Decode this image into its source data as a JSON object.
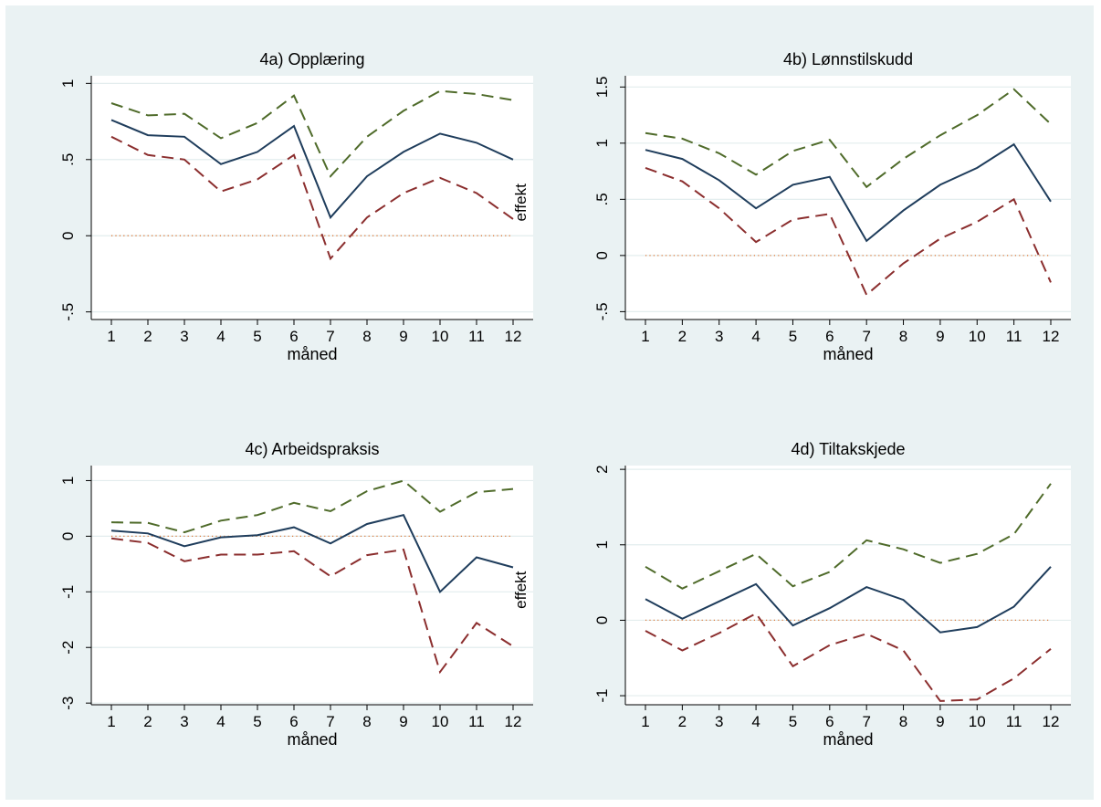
{
  "colors": {
    "background": "#eaf2f3",
    "plot_bg": "#ffffff",
    "grid": "#e3edee",
    "effect_line": "#1f3d5c",
    "upper_ci": "#4f6b2a",
    "lower_ci": "#8b2e2e",
    "zero_line": "#e07a3a"
  },
  "chart_data": [
    {
      "type": "line",
      "title": "4a) Opplæring",
      "xlabel": "måned",
      "ylabel": "",
      "annotation": "effekt",
      "x": [
        1,
        2,
        3,
        4,
        5,
        6,
        7,
        8,
        9,
        10,
        11,
        12
      ],
      "x_ticks": [
        "1",
        "2",
        "3",
        "4",
        "5",
        "6",
        "7",
        "8",
        "9",
        "10",
        "11",
        "12"
      ],
      "y_ticks": [
        -0.5,
        0,
        0.5,
        1
      ],
      "y_tick_labels": [
        "-.5",
        "0",
        ".5",
        "1"
      ],
      "ylim": [
        -0.55,
        1.05
      ],
      "grid": true,
      "series": [
        {
          "role": "upper",
          "values": [
            0.87,
            0.79,
            0.8,
            0.64,
            0.74,
            0.92,
            0.39,
            0.65,
            0.82,
            0.95,
            0.93,
            0.89
          ]
        },
        {
          "role": "effect",
          "values": [
            0.76,
            0.66,
            0.65,
            0.47,
            0.55,
            0.72,
            0.12,
            0.39,
            0.55,
            0.67,
            0.61,
            0.5
          ]
        },
        {
          "role": "lower",
          "values": [
            0.65,
            0.53,
            0.5,
            0.29,
            0.37,
            0.53,
            -0.15,
            0.12,
            0.28,
            0.38,
            0.28,
            0.11
          ]
        },
        {
          "role": "zero",
          "values": [
            0,
            0,
            0,
            0,
            0,
            0,
            0,
            0,
            0,
            0,
            0,
            0
          ]
        }
      ]
    },
    {
      "type": "line",
      "title": "4b) Lønnstilskudd",
      "xlabel": "måned",
      "ylabel": "",
      "annotation": "",
      "x": [
        1,
        2,
        3,
        4,
        5,
        6,
        7,
        8,
        9,
        10,
        11,
        12
      ],
      "x_ticks": [
        "1",
        "2",
        "3",
        "4",
        "5",
        "6",
        "7",
        "8",
        "9",
        "10",
        "11",
        "12"
      ],
      "y_ticks": [
        -0.5,
        0,
        0.5,
        1,
        1.5
      ],
      "y_tick_labels": [
        "-.5",
        "0",
        ".5",
        "1",
        "1.5"
      ],
      "ylim": [
        -0.57,
        1.6
      ],
      "grid": true,
      "series": [
        {
          "role": "upper",
          "values": [
            1.09,
            1.04,
            0.91,
            0.72,
            0.93,
            1.03,
            0.61,
            0.86,
            1.07,
            1.25,
            1.48,
            1.17
          ]
        },
        {
          "role": "effect",
          "values": [
            0.94,
            0.86,
            0.67,
            0.42,
            0.63,
            0.7,
            0.13,
            0.4,
            0.63,
            0.78,
            0.99,
            0.48
          ]
        },
        {
          "role": "lower",
          "values": [
            0.78,
            0.66,
            0.42,
            0.12,
            0.32,
            0.37,
            -0.35,
            -0.07,
            0.15,
            0.3,
            0.5,
            -0.24
          ]
        },
        {
          "role": "zero",
          "values": [
            0,
            0,
            0,
            0,
            0,
            0,
            0,
            0,
            0,
            0,
            0,
            0
          ]
        }
      ]
    },
    {
      "type": "line",
      "title": "4c) Arbeidspraksis",
      "xlabel": "måned",
      "ylabel": "",
      "annotation": "effekt",
      "x": [
        1,
        2,
        3,
        4,
        5,
        6,
        7,
        8,
        9,
        10,
        11,
        12
      ],
      "x_ticks": [
        "1",
        "2",
        "3",
        "4",
        "5",
        "6",
        "7",
        "8",
        "9",
        "10",
        "11",
        "12"
      ],
      "y_ticks": [
        -3,
        -2,
        -1,
        0,
        1
      ],
      "y_tick_labels": [
        "-3",
        "-2",
        "-1",
        "0",
        "1"
      ],
      "ylim": [
        -3.03,
        1.27
      ],
      "grid": true,
      "series": [
        {
          "role": "upper",
          "values": [
            0.25,
            0.24,
            0.07,
            0.28,
            0.38,
            0.6,
            0.45,
            0.81,
            1.0,
            0.44,
            0.79,
            0.85
          ]
        },
        {
          "role": "effect",
          "values": [
            0.1,
            0.05,
            -0.18,
            -0.02,
            0.02,
            0.16,
            -0.13,
            0.22,
            0.38,
            -1.0,
            -0.38,
            -0.56
          ]
        },
        {
          "role": "lower",
          "values": [
            -0.04,
            -0.12,
            -0.45,
            -0.33,
            -0.33,
            -0.27,
            -0.72,
            -0.34,
            -0.24,
            -2.44,
            -1.56,
            -1.98
          ]
        },
        {
          "role": "zero",
          "values": [
            0,
            0,
            0,
            0,
            0,
            0,
            0,
            0,
            0,
            0,
            0,
            0
          ]
        }
      ]
    },
    {
      "type": "line",
      "title": "4d) Tiltakskjede",
      "xlabel": "måned",
      "ylabel": "",
      "annotation": "",
      "x": [
        1,
        2,
        3,
        4,
        5,
        6,
        7,
        8,
        9,
        10,
        11,
        12
      ],
      "x_ticks": [
        "1",
        "2",
        "3",
        "4",
        "5",
        "6",
        "7",
        "8",
        "9",
        "10",
        "11",
        "12"
      ],
      "y_ticks": [
        -1,
        0,
        1,
        2
      ],
      "y_tick_labels": [
        "-1",
        "0",
        "1",
        "2"
      ],
      "ylim": [
        -1.12,
        2.05
      ],
      "grid": true,
      "series": [
        {
          "role": "upper",
          "values": [
            0.71,
            0.42,
            0.65,
            0.88,
            0.45,
            0.64,
            1.06,
            0.94,
            0.76,
            0.88,
            1.14,
            1.81
          ]
        },
        {
          "role": "effect",
          "values": [
            0.28,
            0.02,
            0.25,
            0.48,
            -0.07,
            0.16,
            0.44,
            0.27,
            -0.16,
            -0.09,
            0.18,
            0.71
          ]
        },
        {
          "role": "lower",
          "values": [
            -0.14,
            -0.4,
            -0.17,
            0.09,
            -0.61,
            -0.33,
            -0.18,
            -0.4,
            -1.07,
            -1.05,
            -0.77,
            -0.38
          ]
        },
        {
          "role": "zero",
          "values": [
            0,
            0,
            0,
            0,
            0,
            0,
            0,
            0,
            0,
            0,
            0,
            0
          ]
        }
      ]
    }
  ]
}
